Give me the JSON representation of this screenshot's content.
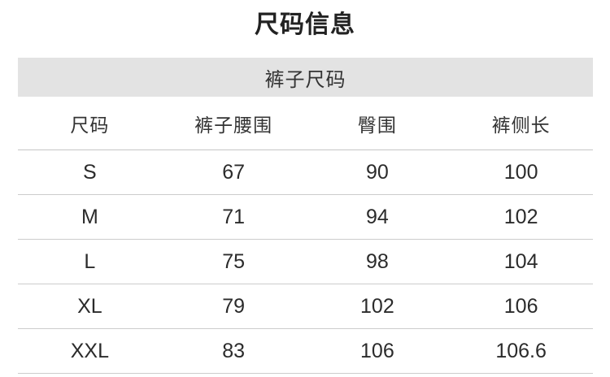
{
  "title": "尺码信息",
  "section_title": "裤子尺码",
  "colors": {
    "band_background": "#e3e3e3",
    "text": "#2b2b2b",
    "divider": "#cccccc"
  },
  "chart_data": {
    "type": "table",
    "title": "尺码信息",
    "section": "裤子尺码",
    "columns": [
      "尺码",
      "裤子腰围",
      "臀围",
      "裤侧长"
    ],
    "rows": [
      [
        "S",
        "67",
        "90",
        "100"
      ],
      [
        "M",
        "71",
        "94",
        "102"
      ],
      [
        "L",
        "75",
        "98",
        "104"
      ],
      [
        "XL",
        "79",
        "102",
        "106"
      ],
      [
        "XXL",
        "83",
        "106",
        "106.6"
      ]
    ]
  }
}
